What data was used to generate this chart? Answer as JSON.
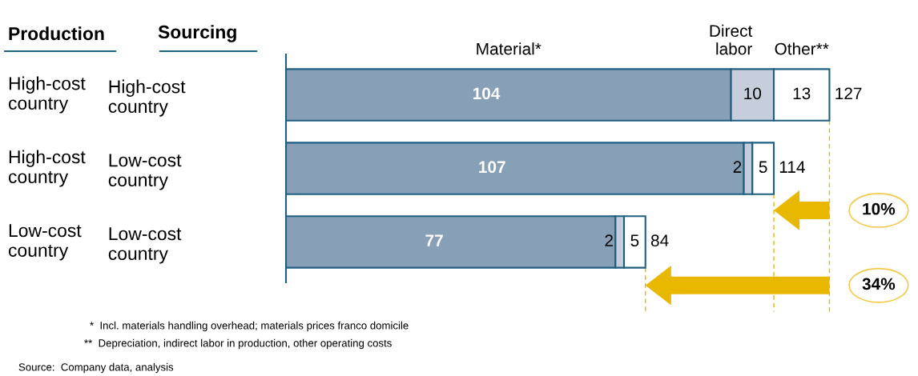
{
  "chart_data": {
    "type": "bar",
    "orientation": "horizontal",
    "stacked": true,
    "categories": [
      "High-cost\ncountry",
      "Low-cost\ncountry",
      "Low-cost\ncountry"
    ],
    "series": [
      {
        "name": "Material*",
        "color": "#879fb7",
        "values": [
          104,
          107,
          77
        ]
      },
      {
        "name": "Direct\nlabor",
        "color": "#c6cddd",
        "values": [
          10,
          2,
          2
        ]
      },
      {
        "name": "Other**",
        "color": "#ffffff",
        "values": [
          13,
          5,
          5
        ]
      }
    ],
    "data_labels": true,
    "totals": [
      "127",
      "114",
      "84"
    ],
    "tick_labels": "y",
    "grid": false,
    "ref_lines": [
      {
        "axis": "x",
        "value": 127,
        "color": "#e8b800",
        "line_style": "dashed"
      },
      {
        "axis": "x",
        "value": 114,
        "color": "#e8b800",
        "line_style": "dashed"
      },
      {
        "axis": "x",
        "value": 84,
        "color": "#e8b800",
        "line_style": "dashed"
      }
    ],
    "annotations": [
      "Production",
      "Sourcing",
      "High-cost\ncountry",
      "High-cost\ncountry",
      "Low-cost\ncountry",
      "10%",
      "34%",
      "*  Incl. materials handling overhead; materials prices franco domicile",
      "**  Depreciation, indirect labor in production, other operating costs",
      "Source:  Company data, analysis"
    ]
  }
}
